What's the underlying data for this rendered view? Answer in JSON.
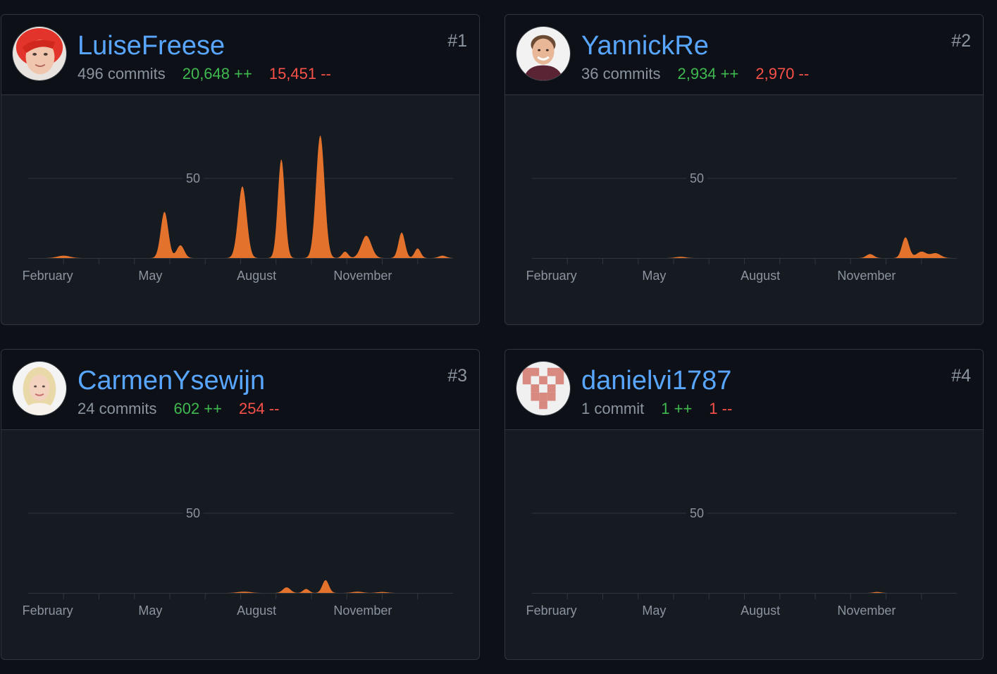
{
  "months": [
    "February",
    "May",
    "August",
    "November"
  ],
  "gridline_label": "50",
  "colors": {
    "background": "#0d1117",
    "card": "#161b22",
    "border": "#30363d",
    "link": "#58a6ff",
    "additions": "#3fb950",
    "deletions": "#f85149",
    "area": "#e3722c"
  },
  "contributors": [
    {
      "rank": "#1",
      "username": "LuiseFreese",
      "commits": "496 commits",
      "additions": "20,648 ++",
      "deletions": "15,451 --",
      "avatar_icon": "avatar-red-hair-photo"
    },
    {
      "rank": "#2",
      "username": "YannickRe",
      "commits": "36 commits",
      "additions": "2,934 ++",
      "deletions": "2,970 --",
      "avatar_icon": "avatar-smiling-man-photo"
    },
    {
      "rank": "#3",
      "username": "CarmenYsewijn",
      "commits": "24 commits",
      "additions": "602 ++",
      "deletions": "254 --",
      "avatar_icon": "avatar-blonde-woman-photo"
    },
    {
      "rank": "#4",
      "username": "danielvi1787",
      "commits": "1 commit",
      "additions": "1 ++",
      "deletions": "1 --",
      "avatar_icon": "identicon-pink-pattern"
    }
  ],
  "chart_data": [
    {
      "type": "area",
      "contributor": "LuiseFreese",
      "xlabel": "",
      "ylabel": "",
      "ylim": [
        0,
        100
      ],
      "x_ticks": [
        "February",
        "May",
        "August",
        "November"
      ],
      "y_ticks": [
        50
      ],
      "peaks": [
        {
          "month": 1.0,
          "value": 1.5,
          "width": 0.25
        },
        {
          "month": 3.85,
          "value": 29,
          "width": 0.15
        },
        {
          "month": 4.3,
          "value": 8,
          "width": 0.15
        },
        {
          "month": 6.05,
          "value": 45,
          "width": 0.17
        },
        {
          "month": 7.15,
          "value": 62,
          "width": 0.14
        },
        {
          "month": 8.25,
          "value": 77,
          "width": 0.17
        },
        {
          "month": 8.95,
          "value": 4,
          "width": 0.12
        },
        {
          "month": 9.55,
          "value": 14,
          "width": 0.2
        },
        {
          "month": 10.55,
          "value": 16,
          "width": 0.13
        },
        {
          "month": 11.0,
          "value": 6,
          "width": 0.12
        },
        {
          "month": 11.7,
          "value": 1.5,
          "width": 0.15
        }
      ]
    },
    {
      "type": "area",
      "contributor": "YannickRe",
      "xlabel": "",
      "ylabel": "",
      "ylim": [
        0,
        100
      ],
      "x_ticks": [
        "February",
        "May",
        "August",
        "November"
      ],
      "y_ticks": [
        50
      ],
      "peaks": [
        {
          "month": 4.2,
          "value": 0.8,
          "width": 0.2
        },
        {
          "month": 9.55,
          "value": 2.5,
          "width": 0.15
        },
        {
          "month": 10.55,
          "value": 13,
          "width": 0.14
        },
        {
          "month": 11.0,
          "value": 4,
          "width": 0.2
        },
        {
          "month": 11.4,
          "value": 3,
          "width": 0.2
        }
      ]
    },
    {
      "type": "area",
      "contributor": "CarmenYsewijn",
      "xlabel": "",
      "ylabel": "",
      "ylim": [
        0,
        100
      ],
      "x_ticks": [
        "February",
        "May",
        "August",
        "November"
      ],
      "y_ticks": [
        50
      ],
      "peaks": [
        {
          "month": 6.1,
          "value": 0.8,
          "width": 0.25
        },
        {
          "month": 7.3,
          "value": 3.5,
          "width": 0.15
        },
        {
          "month": 7.85,
          "value": 2.5,
          "width": 0.12
        },
        {
          "month": 8.4,
          "value": 8,
          "width": 0.13
        },
        {
          "month": 9.3,
          "value": 0.8,
          "width": 0.2
        },
        {
          "month": 10.0,
          "value": 0.6,
          "width": 0.2
        }
      ]
    },
    {
      "type": "area",
      "contributor": "danielvi1787",
      "xlabel": "",
      "ylabel": "",
      "ylim": [
        0,
        100
      ],
      "x_ticks": [
        "February",
        "May",
        "August",
        "November"
      ],
      "y_ticks": [
        50
      ],
      "peaks": [
        {
          "month": 9.75,
          "value": 0.6,
          "width": 0.15
        }
      ]
    }
  ]
}
